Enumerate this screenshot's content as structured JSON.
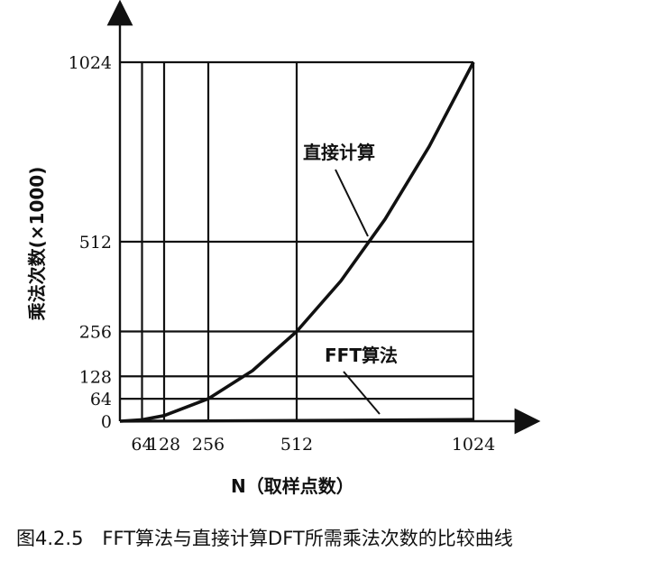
{
  "chart_data": {
    "type": "line",
    "xlabel": "N（取样点数）",
    "ylabel": "乘法次数(×1000)",
    "xlim": [
      0,
      1024
    ],
    "ylim": [
      0,
      1024
    ],
    "x_ticks": [
      64,
      128,
      256,
      512,
      1024
    ],
    "y_ticks": [
      0,
      64,
      128,
      256,
      512,
      1024
    ],
    "vertical_lines_at": [
      64,
      128,
      256,
      512,
      1024
    ],
    "horizontal_lines_at": [
      64,
      128,
      256,
      512,
      1024
    ],
    "series": [
      {
        "name": "直接计算",
        "x": [
          0,
          64,
          128,
          256,
          384,
          512,
          640,
          768,
          896,
          1024
        ],
        "y": [
          0,
          4,
          16,
          64,
          144,
          256,
          400,
          576,
          784,
          1024
        ]
      },
      {
        "name": "FFT算法",
        "x": [
          0,
          64,
          128,
          256,
          512,
          1024
        ],
        "y": [
          0,
          0.19,
          0.45,
          1.02,
          2.3,
          5.1
        ]
      }
    ]
  },
  "caption": "图4.2.5　FFT算法与直接计算DFT所需乘法次数的比较曲线"
}
